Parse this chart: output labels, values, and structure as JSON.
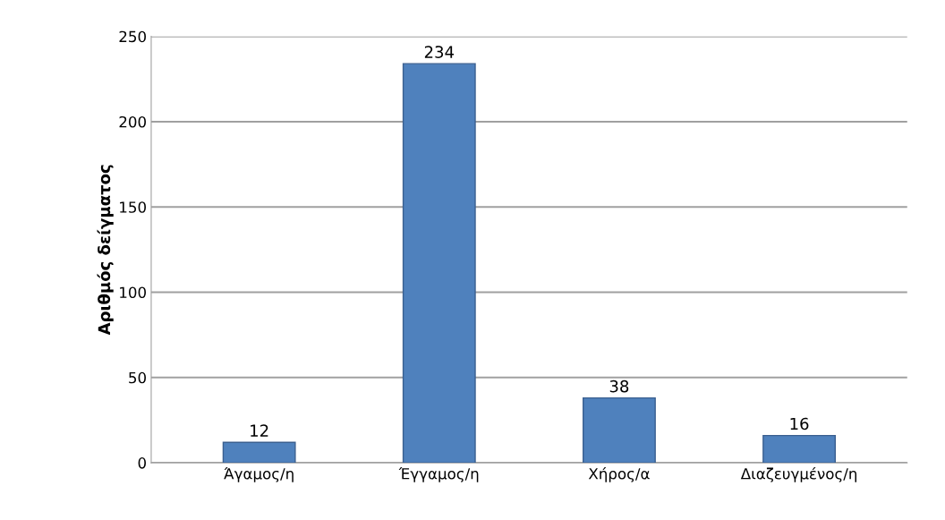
{
  "chart_data": {
    "type": "bar",
    "ylabel": "Αριθμός δείγματος",
    "categories": [
      "Άγαμος/η",
      "Έγγαμος/η",
      "Χήρος/α",
      "Διαζευγμένος/η"
    ],
    "values": [
      12,
      234,
      38,
      16
    ],
    "color": "#4f81bd",
    "ylim": [
      0,
      250
    ],
    "yticks": [
      0,
      50,
      100,
      150,
      200,
      250
    ],
    "grid": "y",
    "data_labels": true,
    "legend": false
  }
}
